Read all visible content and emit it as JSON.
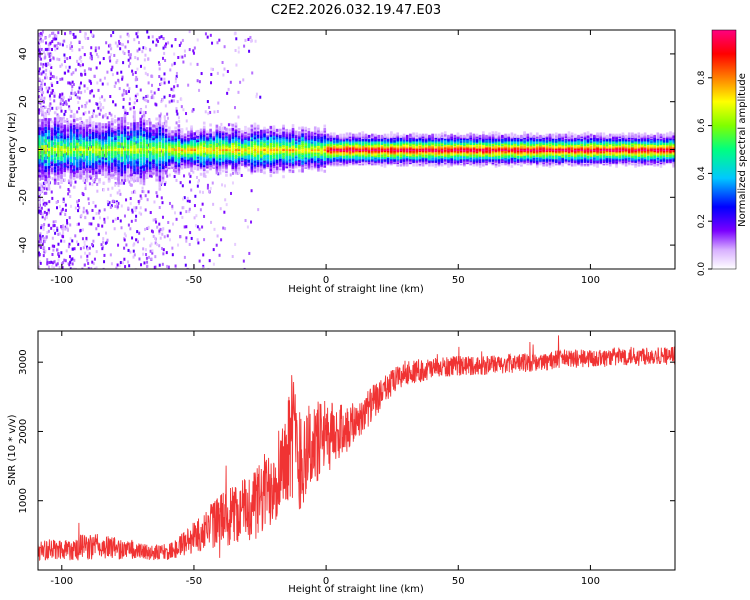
{
  "page_title": "C2E2.2026.032.19.47.E03",
  "chart_data": [
    {
      "type": "heatmap",
      "title": "C2E2.2026.032.19.47.E03",
      "xlabel": "Height of straight line (km)",
      "ylabel": "Frequency (Hz)",
      "xlim": [
        -109,
        132
      ],
      "ylim": [
        -50,
        50
      ],
      "x_ticks": [
        -100,
        -50,
        0,
        50,
        100
      ],
      "y_ticks": [
        -40,
        -20,
        0,
        20,
        40
      ],
      "colorbar": {
        "label": "Normalized spectral amplitude",
        "range": [
          0.0,
          1.0
        ],
        "ticks": [
          0.0,
          0.2,
          0.4,
          0.6,
          0.8
        ],
        "colors": [
          "#ffffff",
          "#d8b0ff",
          "#7a00ff",
          "#0000ff",
          "#00c8ff",
          "#00ff80",
          "#80ff00",
          "#ffff00",
          "#ff8000",
          "#ff0000",
          "#ff0080"
        ]
      },
      "description_values": {
        "dominant_frequency_hz": 0,
        "noisy_region_km": [
          -109,
          -60
        ],
        "band_center_amplitude_near_zero_km": 0.9
      }
    },
    {
      "type": "line",
      "xlabel": "Height of straight line (km)",
      "ylabel": "SNR (10 * v/v)",
      "xlim": [
        -109,
        132
      ],
      "ylim": [
        0,
        3450
      ],
      "x_ticks": [
        -100,
        -50,
        0,
        50,
        100
      ],
      "y_ticks": [
        1000,
        2000,
        3000
      ],
      "series": [
        {
          "name": "SNR",
          "color": "#f03333",
          "x": [
            -109,
            -100,
            -90,
            -80,
            -70,
            -60,
            -55,
            -50,
            -45,
            -40,
            -35,
            -30,
            -25,
            -20,
            -15,
            -13,
            -10,
            -5,
            0,
            5,
            10,
            15,
            20,
            25,
            30,
            40,
            50,
            60,
            70,
            80,
            90,
            100,
            110,
            120,
            132
          ],
          "values": [
            280,
            300,
            340,
            320,
            260,
            250,
            350,
            480,
            600,
            720,
            800,
            900,
            1000,
            1300,
            1700,
            2000,
            1600,
            1800,
            1900,
            2000,
            2100,
            2300,
            2500,
            2700,
            2850,
            2900,
            2950,
            2950,
            2980,
            3000,
            3050,
            3050,
            3080,
            3100,
            3100
          ],
          "spread": [
            180,
            200,
            250,
            200,
            150,
            140,
            200,
            300,
            400,
            500,
            550,
            600,
            700,
            800,
            900,
            1200,
            1000,
            800,
            700,
            500,
            400,
            350,
            300,
            250,
            220,
            200,
            180,
            170,
            170,
            170,
            170,
            170,
            170,
            170,
            170
          ]
        }
      ]
    }
  ]
}
